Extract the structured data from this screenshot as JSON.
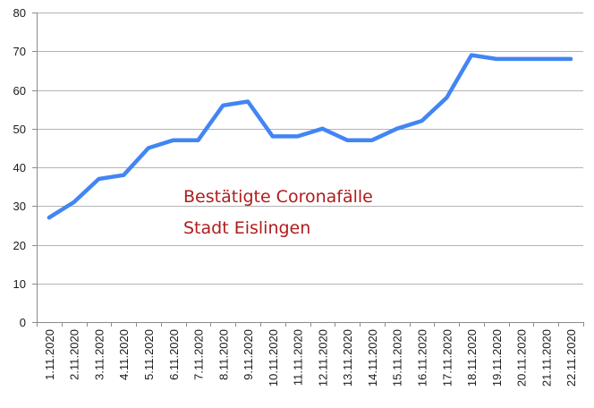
{
  "chart_data": {
    "type": "line",
    "title_lines": [
      "Bestätigte Coronafälle",
      "Stadt Eislingen"
    ],
    "categories": [
      "1.11.2020",
      "2.11.2020",
      "3.11.2020",
      "4.11.2020",
      "5.11.2020",
      "6.11.2020",
      "7.11.2020",
      "8.11.2020",
      "9.11.2020",
      "10.11.2020",
      "11.11.2020",
      "12.11.2020",
      "13.11.2020",
      "14.11.2020",
      "15.11.2020",
      "16.11.2020",
      "17.11.2020",
      "18.11.2020",
      "19.11.2020",
      "20.11.2020",
      "21.11.2020",
      "22.11.2020"
    ],
    "series": [
      {
        "values": [
          27,
          31,
          37,
          38,
          45,
          47,
          47,
          56,
          57,
          48,
          48,
          50,
          47,
          47,
          50,
          52,
          58,
          69,
          68,
          68,
          68,
          68
        ]
      }
    ],
    "ylim": [
      0,
      80
    ],
    "yticks": [
      0,
      10,
      20,
      30,
      40,
      50,
      60,
      70,
      80
    ],
    "grid": true,
    "line_color": "#4285f4",
    "title_color": "#b01c1c"
  }
}
